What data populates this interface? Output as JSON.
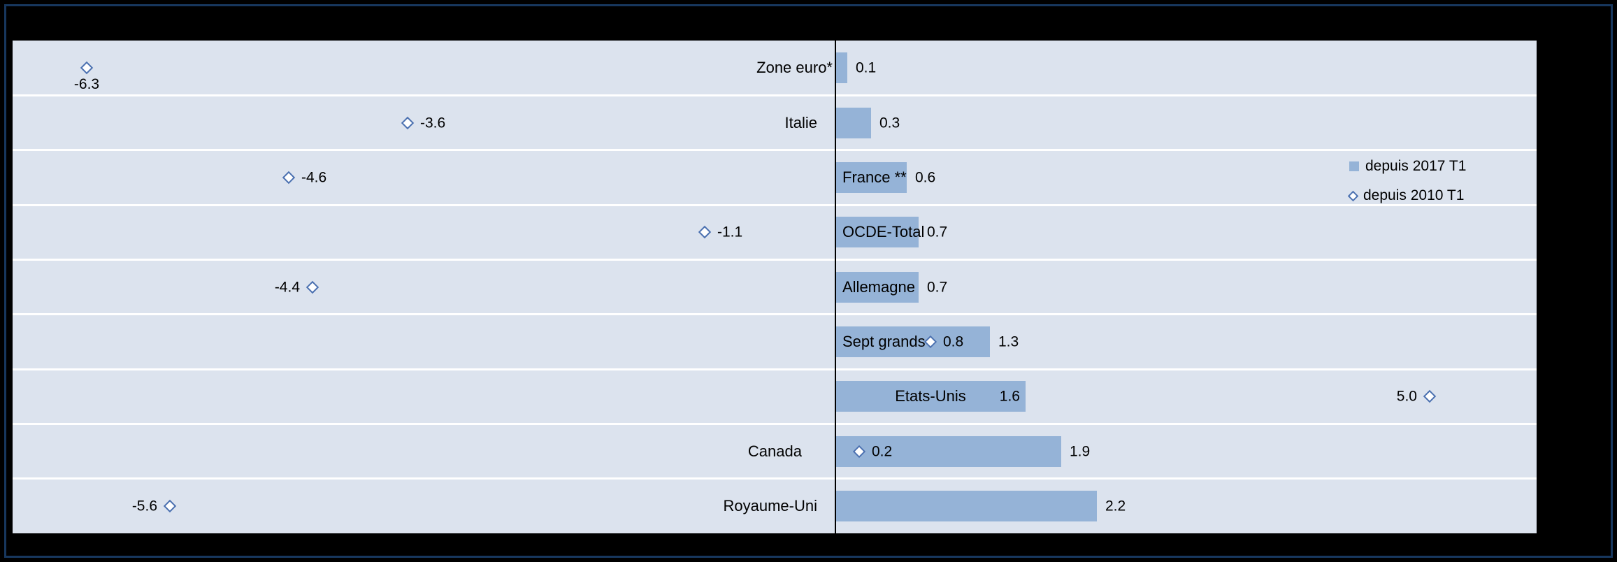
{
  "chart_data": {
    "type": "bar",
    "orientation": "horizontal",
    "title": "",
    "categories": [
      "Zone euro*",
      "Italie",
      "France **",
      "OCDE-Total",
      "Allemagne",
      "Sept grands",
      "Etats-Unis",
      "Canada",
      "Royaume-Uni"
    ],
    "series": [
      {
        "name": "depuis 2017 T1",
        "type": "bar",
        "values": [
          0.1,
          0.3,
          0.6,
          0.7,
          0.7,
          1.3,
          1.6,
          1.9,
          2.2
        ]
      },
      {
        "name": "depuis 2010 T1",
        "type": "scatter",
        "marker": "diamond",
        "values": [
          -6.3,
          -3.6,
          -4.6,
          -1.1,
          -4.4,
          0.8,
          5.0,
          0.2,
          -5.6
        ]
      }
    ],
    "xlim": [
      -6.9,
      5.9
    ],
    "zero_axis_line": true,
    "grid": "white-row-separators",
    "legend_position": "right"
  },
  "row_labels": [
    {
      "bar_label": "0.1",
      "diamond_label": "-6.3",
      "category_pos": "left-of-axis",
      "bar_label_pos": "after",
      "diamond_label_pos": "below"
    },
    {
      "bar_label": "0.3",
      "diamond_label": "-3.6",
      "category_pos": "left-of-axis",
      "bar_label_pos": "after",
      "diamond_label_pos": "right"
    },
    {
      "bar_label": "0.6",
      "diamond_label": "-4.6",
      "category_pos": "on-bar",
      "bar_label_pos": "after",
      "diamond_label_pos": "right"
    },
    {
      "bar_label": "0.7",
      "diamond_label": "-1.1",
      "category_pos": "on-bar",
      "bar_label_pos": "after",
      "diamond_label_pos": "right"
    },
    {
      "bar_label": "0.7",
      "diamond_label": "-4.4",
      "category_pos": "on-bar",
      "bar_label_pos": "after",
      "diamond_label_pos": "left"
    },
    {
      "bar_label": "1.3",
      "diamond_label": "0.8",
      "category_pos": "on-bar",
      "bar_label_pos": "after",
      "diamond_label_pos": "right"
    },
    {
      "bar_label": "1.6",
      "diamond_label": "5.0",
      "category_pos": "on-bar-center",
      "bar_label_pos": "inside-end",
      "diamond_label_pos": "left"
    },
    {
      "bar_label": "1.9",
      "diamond_label": "0.2",
      "category_pos": "left-of-axis",
      "bar_label_pos": "after",
      "diamond_label_pos": "right"
    },
    {
      "bar_label": "2.2",
      "diamond_label": "-5.6",
      "category_pos": "left-of-axis",
      "bar_label_pos": "after",
      "diamond_label_pos": "left"
    }
  ],
  "legend": {
    "items": [
      {
        "label": "depuis 2017 T1",
        "marker": "square"
      },
      {
        "label": "depuis 2010 T1",
        "marker": "diamond"
      }
    ]
  },
  "colors": {
    "outer_bg": "#000000",
    "frame_border": "#17375e",
    "plot_bg": "#dce3ee",
    "bar": "#95b3d7",
    "diamond_stroke": "#4a70b0",
    "axis": "#000000",
    "separator": "#ffffff"
  }
}
